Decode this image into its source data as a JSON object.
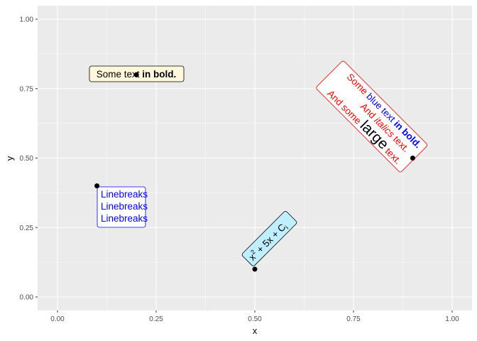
{
  "chart_data": {
    "type": "scatter",
    "xlabel": "x",
    "ylabel": "y",
    "xlim": [
      -0.05,
      1.05
    ],
    "ylim": [
      -0.05,
      1.05
    ],
    "x_ticks": [
      "0.00",
      "0.25",
      "0.50",
      "0.75",
      "1.00"
    ],
    "y_ticks": [
      "0.00",
      "0.25",
      "0.50",
      "0.75",
      "1.00"
    ],
    "grid": true,
    "panel_background": "#EBEBEB",
    "points": [
      {
        "x": 0.2,
        "y": 0.8
      },
      {
        "x": 0.1,
        "y": 0.4
      },
      {
        "x": 0.5,
        "y": 0.1
      },
      {
        "x": 0.9,
        "y": 0.5
      }
    ],
    "labels": [
      {
        "text_plain": "Some text ",
        "text_bold": "in bold.",
        "fill": "#FFF8DC",
        "border": "#000000",
        "angle": 0
      },
      {
        "lines": [
          "Linebreaks",
          "Linebreaks",
          "Linebreaks"
        ],
        "color": "#0000FF",
        "fill": "#FFFFFF",
        "border": "#0000FF",
        "angle": 0
      },
      {
        "base": "x",
        "sup": "2",
        "mid": " + 5x + C",
        "sub": "i",
        "fill": "#BFEFFF",
        "border": "#000000",
        "angle": 45
      },
      {
        "line1": [
          "Some ",
          "blue text ",
          "in bold."
        ],
        "line2": [
          "And ",
          "italics",
          " text."
        ],
        "line3": [
          "And some ",
          "large",
          " text."
        ],
        "color": "#FF0000",
        "accent": "#0000FF",
        "fill": "#FFFFFF",
        "border": "#FF0000",
        "angle": -45
      }
    ]
  }
}
